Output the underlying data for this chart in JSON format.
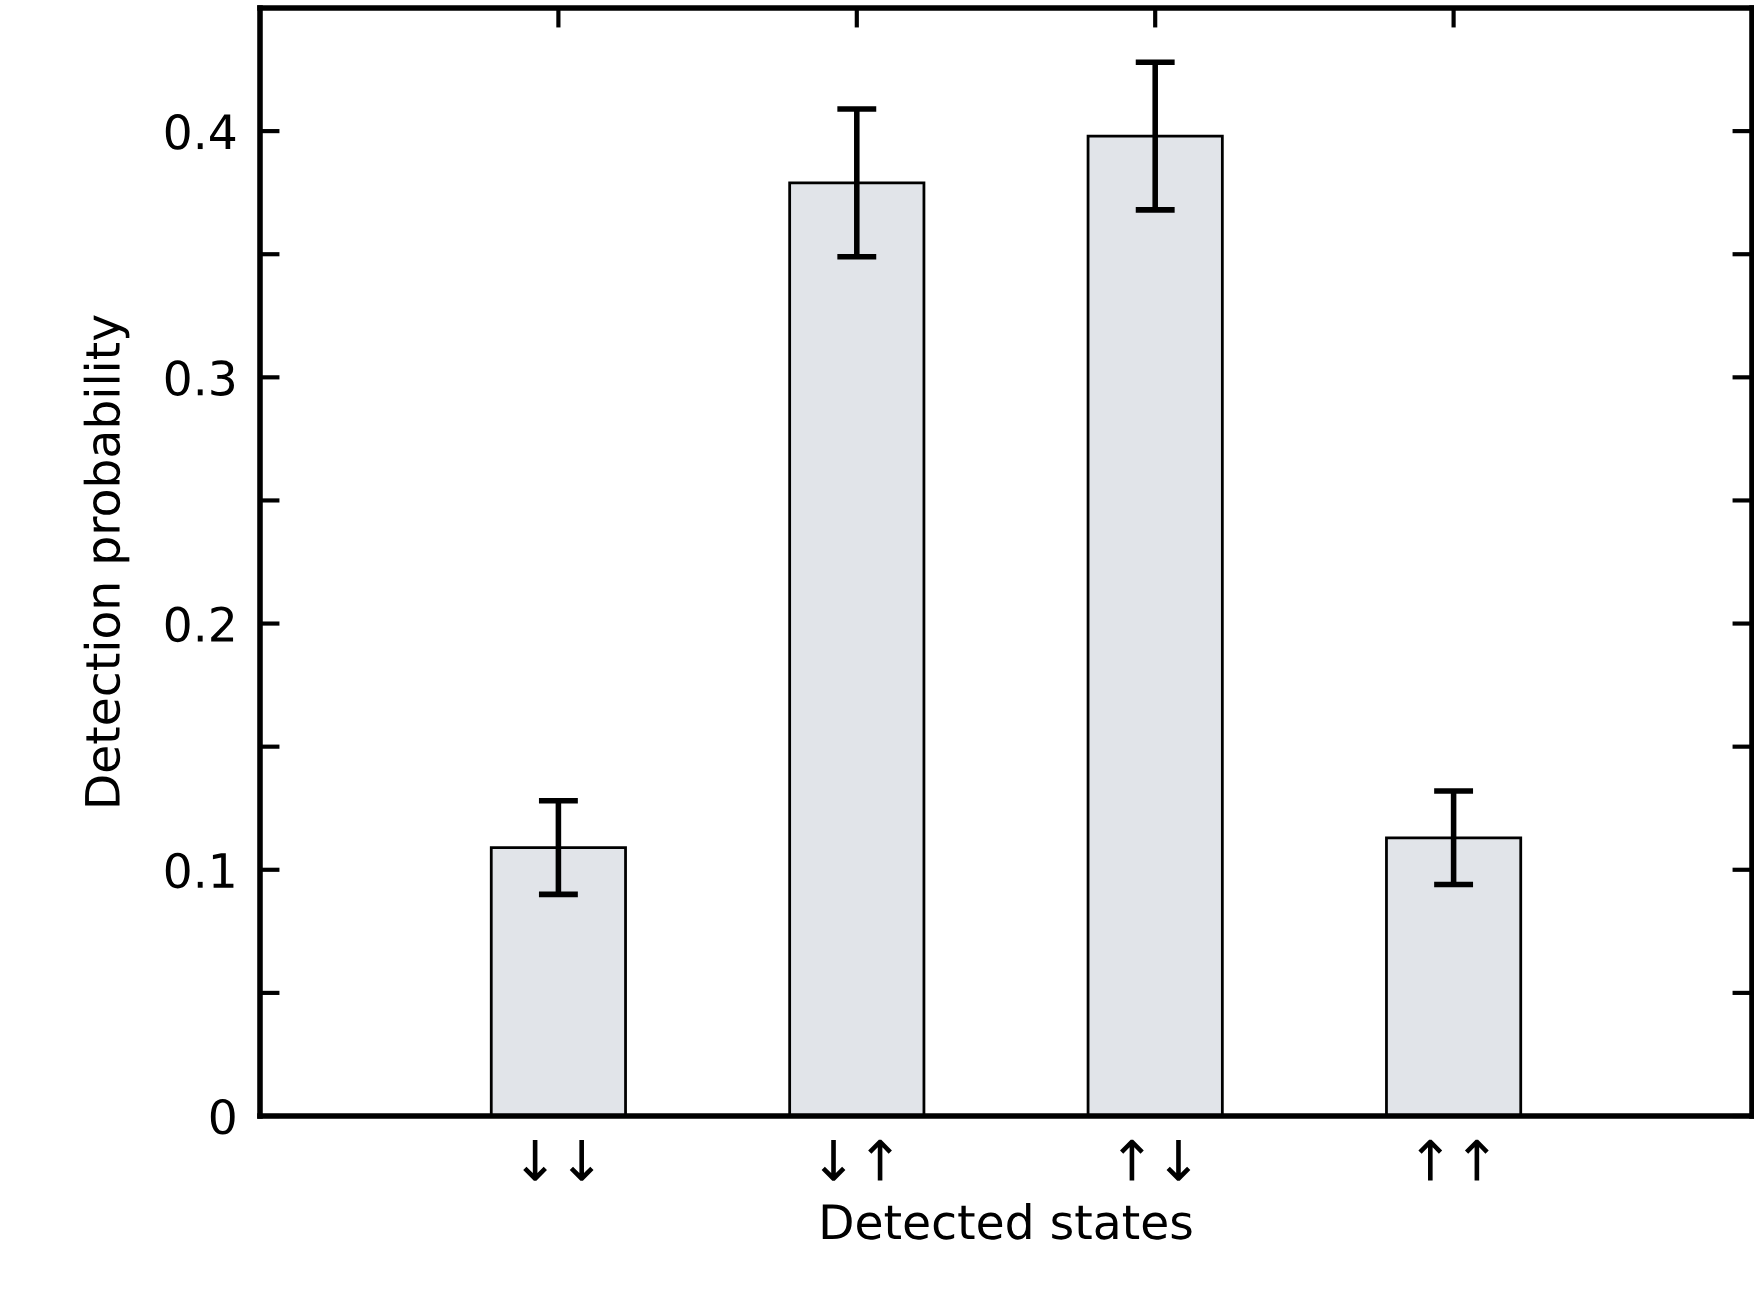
{
  "chart_data": {
    "type": "bar",
    "xlabel": "Detected states",
    "ylabel": "Detection probability",
    "categories": [
      "↓↓",
      "↓↑",
      "↑↓",
      "↑↑"
    ],
    "values": [
      0.109,
      0.379,
      0.398,
      0.113
    ],
    "errors": [
      0.019,
      0.03,
      0.03,
      0.019
    ],
    "color": "#e1e4e9",
    "ylim": [
      0,
      0.45
    ],
    "yticks": [
      0,
      {
        "value": 0.05,
        "label": null
      },
      0.1,
      {
        "value": 0.15,
        "label": null
      },
      0.2,
      {
        "value": 0.25,
        "label": null
      },
      0.3,
      {
        "value": 0.35,
        "label": null
      },
      0.4
    ],
    "grid": false,
    "legend": false
  }
}
